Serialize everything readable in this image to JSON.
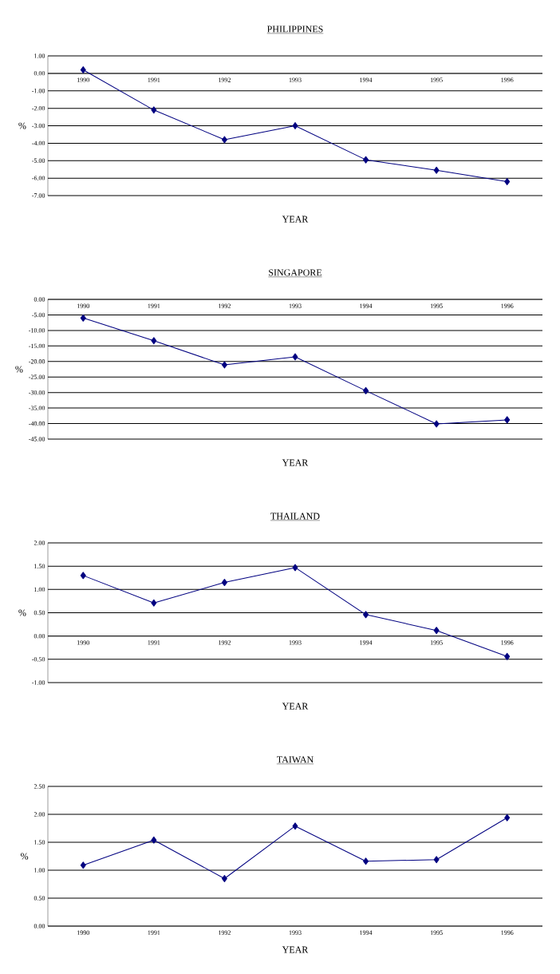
{
  "chart_data": [
    {
      "type": "line",
      "title": "PHILIPPINES",
      "xlabel": "YEAR",
      "ylabel": "%",
      "categories": [
        "1990",
        "1991",
        "1992",
        "1993",
        "1994",
        "1995",
        "1996"
      ],
      "values": [
        0.2,
        -2.1,
        -3.8,
        -3.0,
        -4.95,
        -5.55,
        -6.2
      ],
      "color": "#000080",
      "marker": "diamond",
      "line_style": "solid",
      "grid": "y",
      "ylim": [
        -7,
        1
      ],
      "yticks": [
        {
          "value": -7,
          "label": "-7.00"
        },
        {
          "value": -6,
          "label": "-6.00"
        },
        {
          "value": -5,
          "label": "-5.00"
        },
        {
          "value": -4,
          "label": "-4.00"
        },
        {
          "value": -3,
          "label": "-3.00"
        },
        {
          "value": -2,
          "label": "-2.00"
        },
        {
          "value": -1,
          "label": "-1.00"
        },
        {
          "value": 0,
          "label": "0.00"
        },
        {
          "value": 1,
          "label": "1.00"
        }
      ]
    },
    {
      "type": "line",
      "title": "SINGAPORE",
      "xlabel": "YEAR",
      "ylabel": "%",
      "categories": [
        "1990",
        "1991",
        "1992",
        "1993",
        "1994",
        "1995",
        "1996"
      ],
      "values": [
        -6.0,
        -13.3,
        -21.1,
        -18.5,
        -29.4,
        -40.1,
        -38.8
      ],
      "color": "#000080",
      "marker": "diamond",
      "line_style": "solid",
      "grid": "y",
      "ylim": [
        -45,
        0
      ],
      "yticks": [
        {
          "value": -45,
          "label": "-45.00"
        },
        {
          "value": -40,
          "label": "-40.00"
        },
        {
          "value": -35,
          "label": "-35.00"
        },
        {
          "value": -30,
          "label": "-30.00"
        },
        {
          "value": -25,
          "label": "-25.00"
        },
        {
          "value": -20,
          "label": "-20.00"
        },
        {
          "value": -15,
          "label": "-15.00"
        },
        {
          "value": -10,
          "label": "-10.00"
        },
        {
          "value": -5,
          "label": "-5.00"
        },
        {
          "value": 0,
          "label": "0.00"
        }
      ]
    },
    {
      "type": "line",
      "title": "THAILAND",
      "xlabel": "YEAR",
      "ylabel": "%",
      "categories": [
        "1990",
        "1991",
        "1992",
        "1993",
        "1994",
        "1995",
        "1996"
      ],
      "values": [
        1.3,
        0.71,
        1.15,
        1.47,
        0.46,
        0.12,
        -0.44
      ],
      "color": "#000080",
      "marker": "diamond",
      "line_style": "solid",
      "grid": "y",
      "ylim": [
        -1,
        2
      ],
      "yticks": [
        {
          "value": -1,
          "label": "-1.00"
        },
        {
          "value": -0.5,
          "label": "-0.50"
        },
        {
          "value": 0,
          "label": "0.00"
        },
        {
          "value": 0.5,
          "label": "0.50"
        },
        {
          "value": 1,
          "label": "1.00"
        },
        {
          "value": 1.5,
          "label": "1.50"
        },
        {
          "value": 2,
          "label": "2.00"
        }
      ]
    },
    {
      "type": "line",
      "title": "TAIWAN",
      "xlabel": "YEAR",
      "ylabel": "%",
      "categories": [
        "1990",
        "1991",
        "1992",
        "1993",
        "1994",
        "1995",
        "1996"
      ],
      "values": [
        1.09,
        1.54,
        0.85,
        1.79,
        1.16,
        1.19,
        1.94
      ],
      "color": "#000080",
      "marker": "diamond",
      "line_style": "solid",
      "grid": "y",
      "ylim": [
        0,
        2.5
      ],
      "yticks": [
        {
          "value": 0,
          "label": "0.00"
        },
        {
          "value": 0.5,
          "label": "0.50"
        },
        {
          "value": 1,
          "label": "1.00"
        },
        {
          "value": 1.5,
          "label": "1.50"
        },
        {
          "value": 2,
          "label": "2.00"
        },
        {
          "value": 2.5,
          "label": "2.50"
        }
      ]
    }
  ]
}
